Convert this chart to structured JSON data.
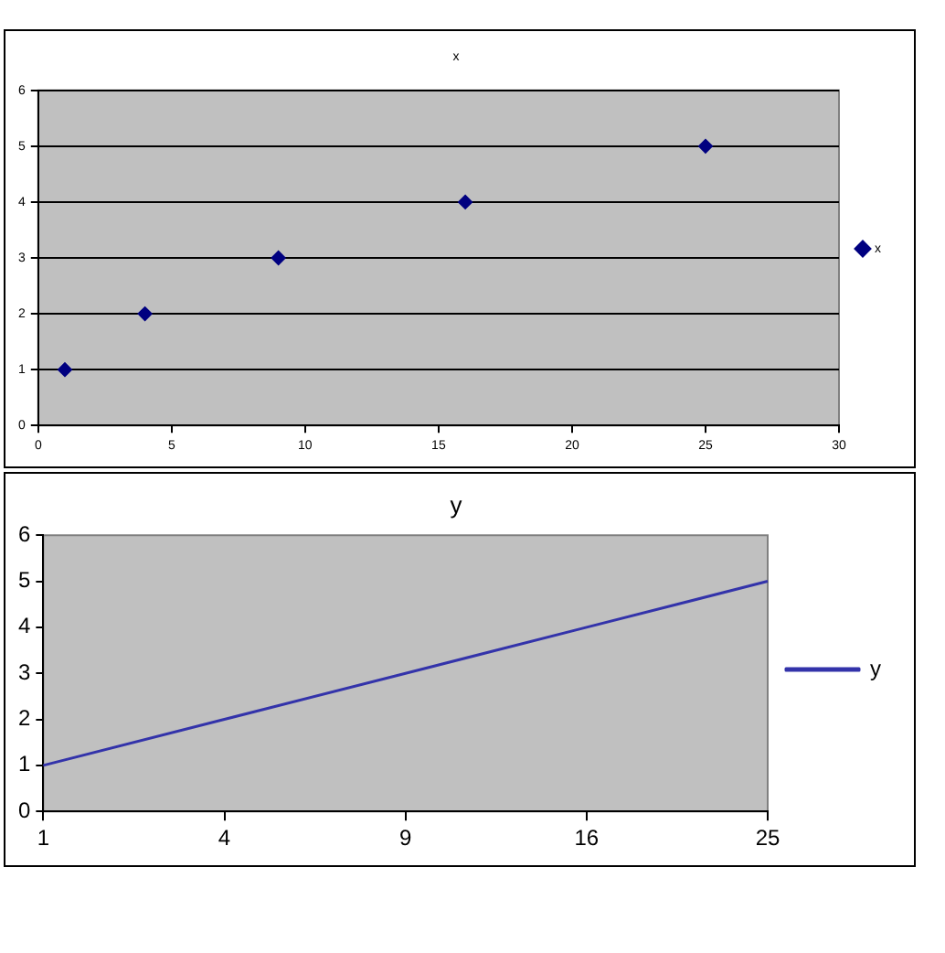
{
  "chart_data": [
    {
      "type": "scatter",
      "title": "x",
      "x": [
        1,
        4,
        9,
        16,
        25
      ],
      "series": [
        {
          "name": "x",
          "color": "#000080",
          "values": [
            1,
            2,
            3,
            4,
            5
          ]
        }
      ],
      "xlim": [
        0,
        30
      ],
      "xticks": [
        0,
        5,
        10,
        15,
        20,
        25,
        30
      ],
      "ylim": [
        0,
        6
      ],
      "yticks": [
        0,
        1,
        2,
        3,
        4,
        5,
        6
      ],
      "grid": "y",
      "legend": "right",
      "marker": "diamond"
    },
    {
      "type": "line",
      "title": "y",
      "categories": [
        "1",
        "4",
        "9",
        "16",
        "25"
      ],
      "series": [
        {
          "name": "y",
          "color": "#3333aa",
          "values": [
            1,
            2,
            3,
            4,
            5
          ]
        }
      ],
      "ylim": [
        0,
        6
      ],
      "yticks": [
        0,
        1,
        2,
        3,
        4,
        5,
        6
      ],
      "grid": false,
      "legend": "right",
      "marker": "none"
    }
  ]
}
